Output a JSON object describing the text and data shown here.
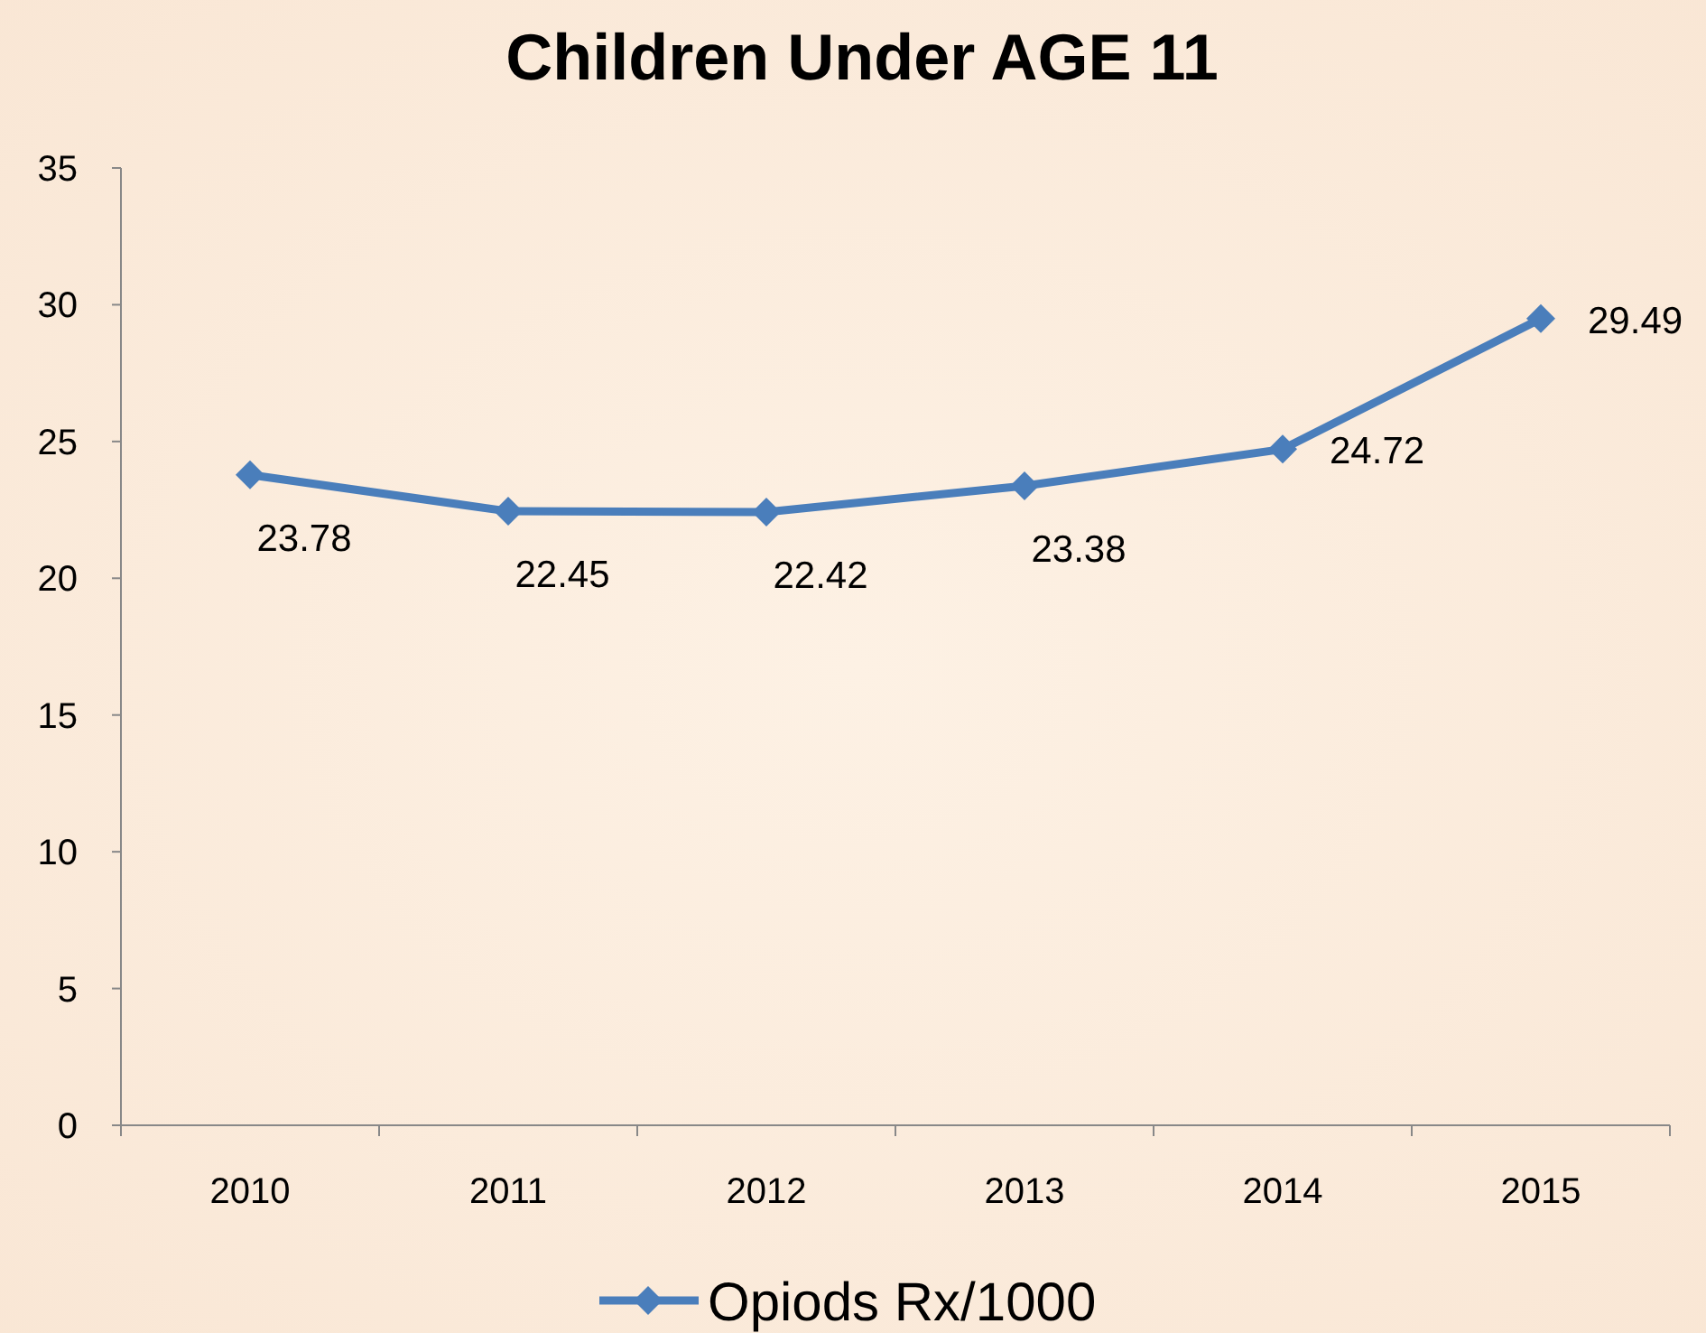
{
  "chart_data": {
    "type": "line",
    "title": "Children Under AGE 11",
    "categories": [
      "2010",
      "2011",
      "2012",
      "2013",
      "2014",
      "2015"
    ],
    "series": [
      {
        "name": "Opiods Rx/1000",
        "color": "#4a7ebb",
        "values": [
          23.78,
          22.45,
          22.42,
          23.38,
          24.72,
          29.49
        ]
      }
    ],
    "ylim": [
      0,
      35
    ],
    "yticks": [
      0,
      5,
      10,
      15,
      20,
      25,
      30,
      35
    ],
    "data_labels": true,
    "legend": "bottom",
    "marker": "diamond",
    "line_style": "solid",
    "grid": false
  }
}
